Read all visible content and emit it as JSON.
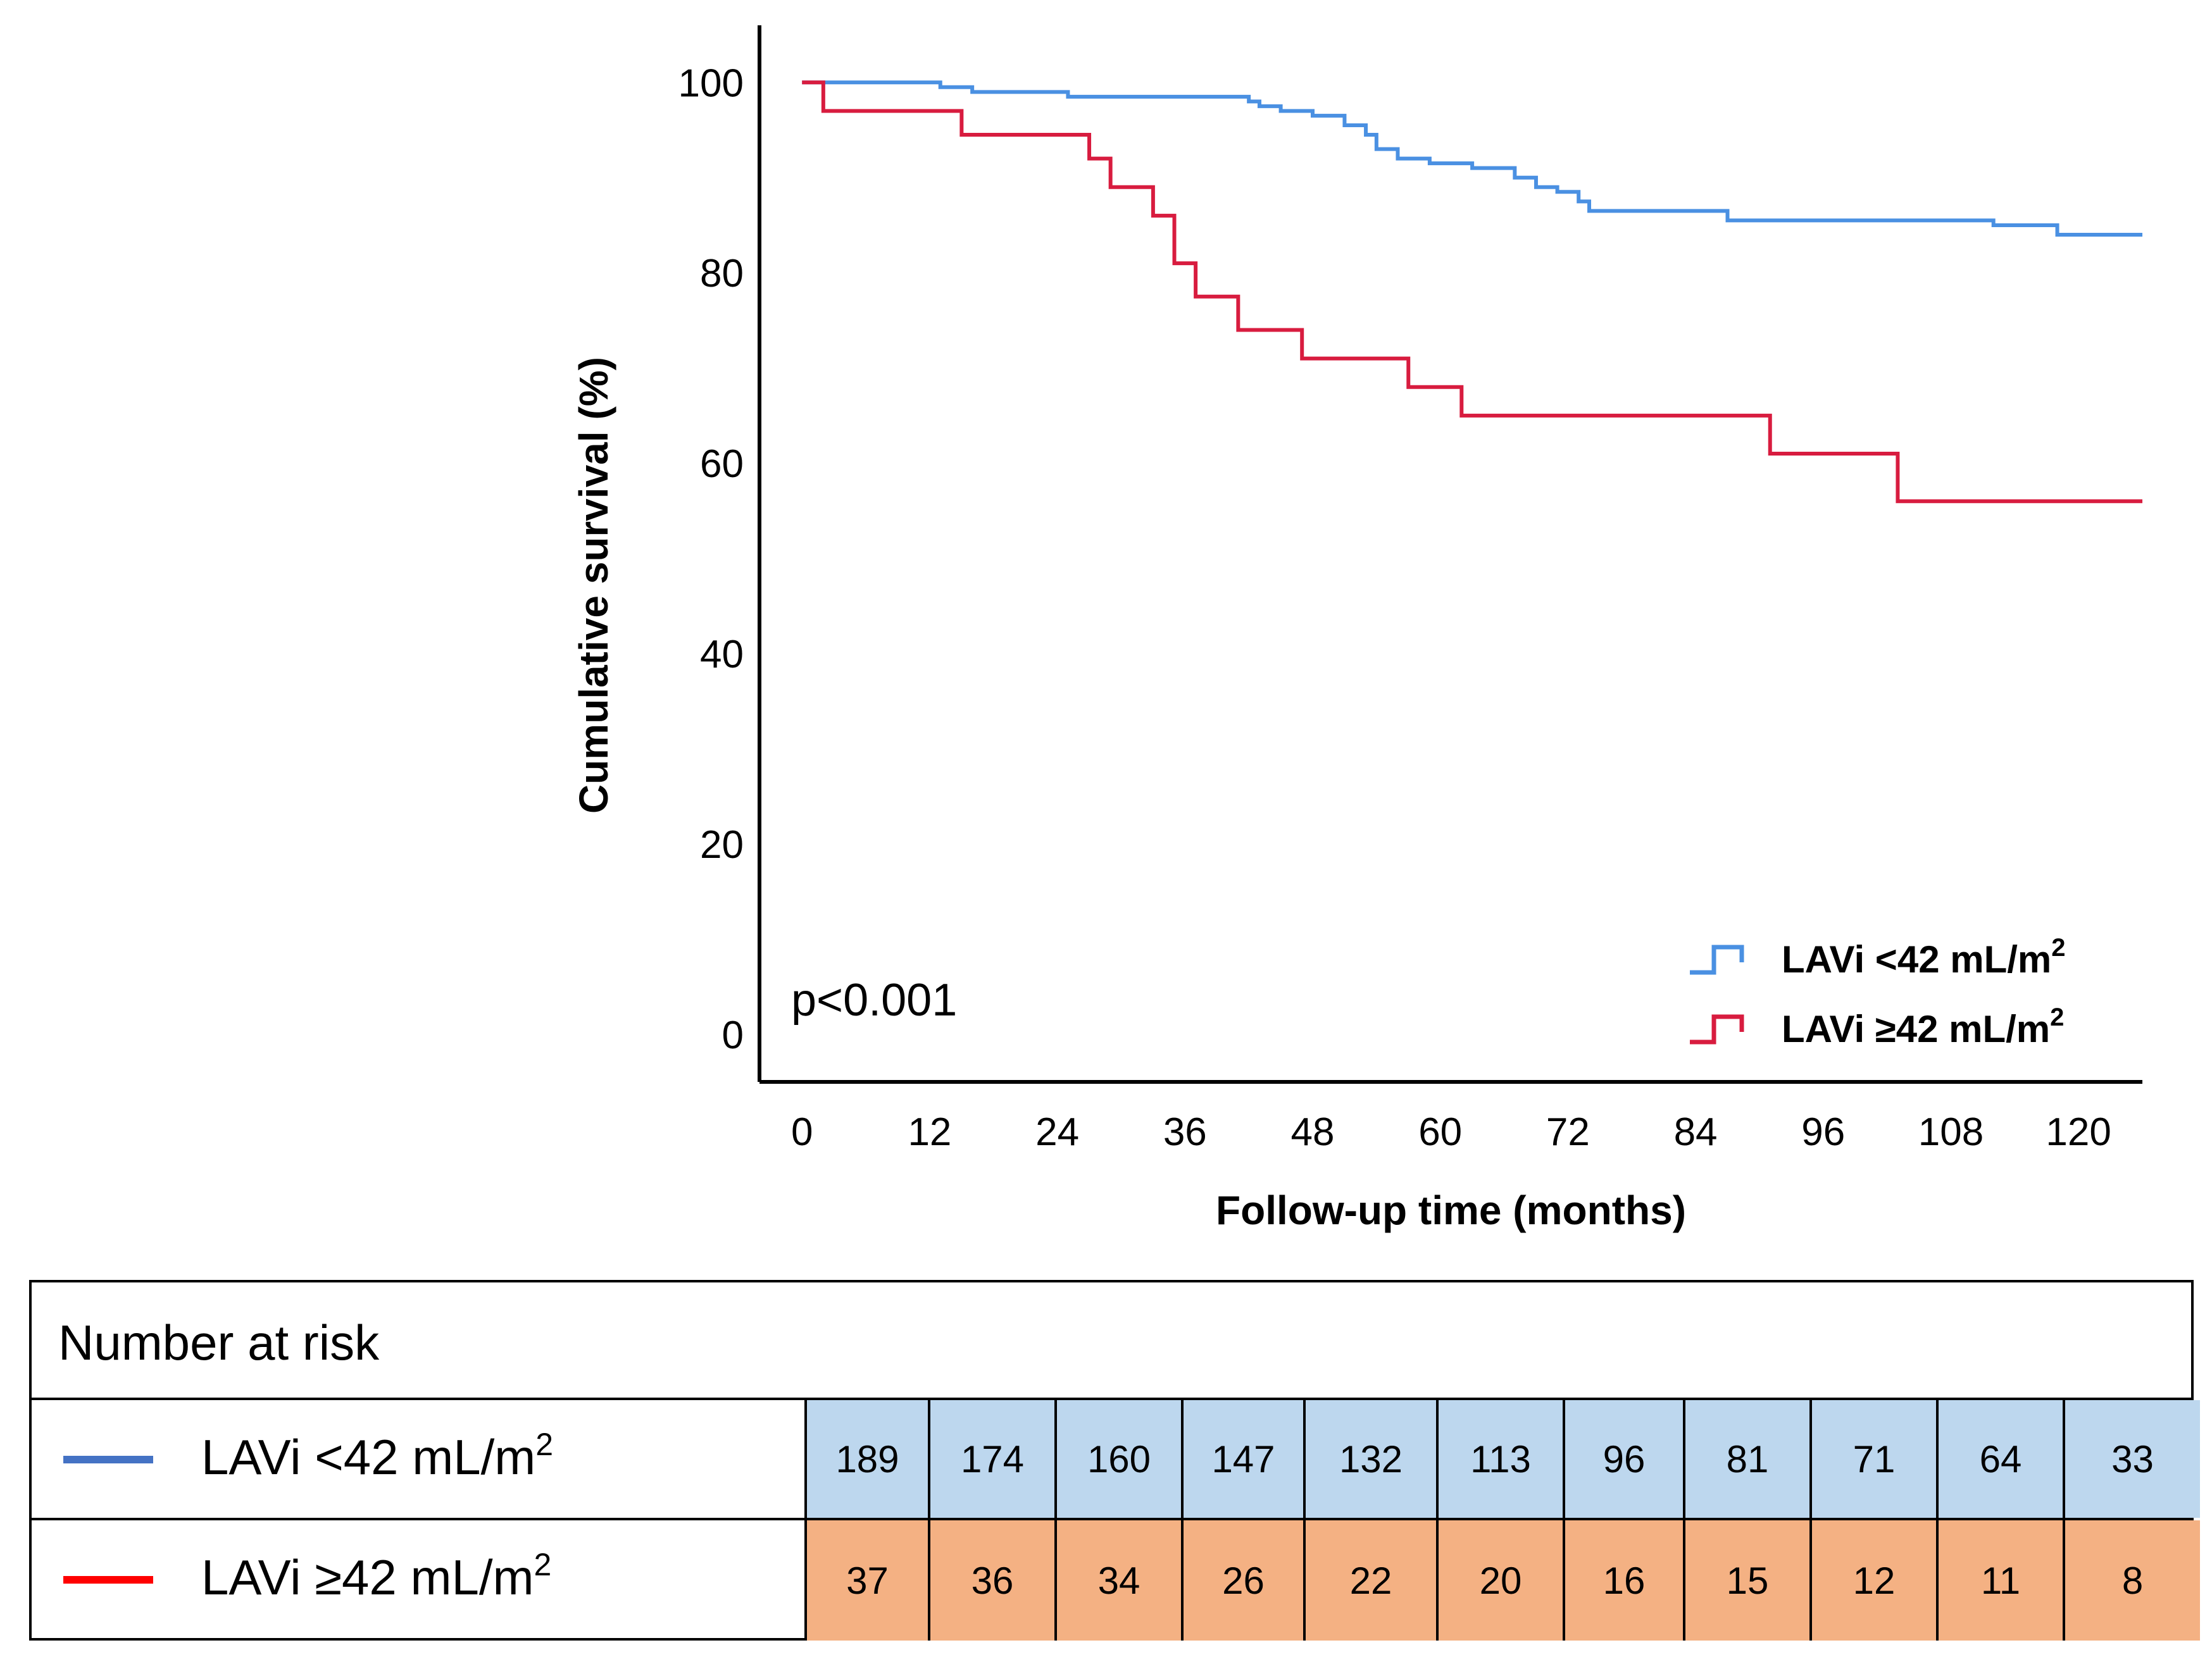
{
  "chart_data": {
    "type": "line",
    "subtype": "kaplan-meier step plot",
    "xlabel": "Follow-up time (months)",
    "ylabel": "Cumulative survival (%)",
    "xlim": [
      -4,
      126
    ],
    "ylim": [
      -5,
      106
    ],
    "xticks": [
      0,
      12,
      24,
      36,
      48,
      60,
      72,
      84,
      96,
      108,
      120
    ],
    "yticks": [
      0,
      20,
      40,
      60,
      80,
      100
    ],
    "annotation": "p<0.001",
    "legend_position": "bottom-right",
    "series": [
      {
        "name": "LAVi <42 mL/m",
        "sup": "2",
        "color": "#4a90e2",
        "steps": [
          [
            0,
            100
          ],
          [
            13,
            99.5
          ],
          [
            16,
            99
          ],
          [
            25,
            98.5
          ],
          [
            42,
            98
          ],
          [
            43,
            97.5
          ],
          [
            45,
            97
          ],
          [
            48,
            96.5
          ],
          [
            51,
            95.5
          ],
          [
            53,
            94.5
          ],
          [
            54,
            93
          ],
          [
            56,
            92
          ],
          [
            59,
            91.5
          ],
          [
            63,
            91
          ],
          [
            67,
            90
          ],
          [
            69,
            89
          ],
          [
            71,
            88.5
          ],
          [
            73,
            87.5
          ],
          [
            74,
            86.5
          ],
          [
            87,
            85.5
          ],
          [
            112,
            85
          ],
          [
            118,
            84
          ],
          [
            126,
            84
          ]
        ]
      },
      {
        "name": "LAVi ≥42 mL/m",
        "sup": "2",
        "color": "#d81c3f",
        "steps": [
          [
            0,
            100
          ],
          [
            2,
            97
          ],
          [
            15,
            94.5
          ],
          [
            27,
            92
          ],
          [
            29,
            89
          ],
          [
            33,
            86
          ],
          [
            35,
            81
          ],
          [
            37,
            77.5
          ],
          [
            41,
            74
          ],
          [
            47,
            71
          ],
          [
            57,
            68
          ],
          [
            62,
            65
          ],
          [
            91,
            61
          ],
          [
            103,
            56
          ],
          [
            126,
            56
          ]
        ]
      }
    ]
  },
  "risk_table": {
    "title": "Number at risk",
    "rows": [
      {
        "label": "LAVi <42 mL/m",
        "sup": "2",
        "line_color": "#4472c4",
        "cell_color": "#bdd7ee",
        "values": [
          "189",
          "174",
          "160",
          "147",
          "132",
          "113",
          "96",
          "81",
          "71",
          "64",
          "33"
        ]
      },
      {
        "label": "LAVi ≥42 mL/m",
        "sup": "2",
        "line_color": "#ff0000",
        "cell_color": "#f4b183",
        "values": [
          "37",
          "36",
          "34",
          "26",
          "22",
          "20",
          "16",
          "15",
          "12",
          "11",
          "8"
        ]
      }
    ]
  }
}
